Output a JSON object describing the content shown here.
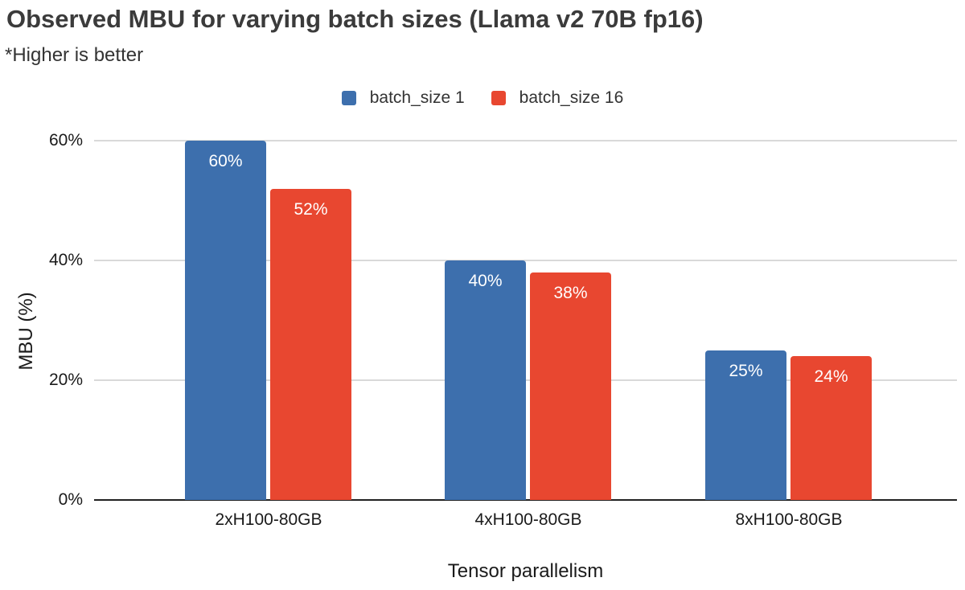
{
  "chart_data": {
    "type": "bar",
    "title": "Observed MBU for varying batch sizes (Llama v2 70B fp16)",
    "subtitle": "*Higher is better",
    "xlabel": "Tensor parallelism",
    "ylabel": "MBU (%)",
    "categories": [
      "2xH100-80GB",
      "4xH100-80GB",
      "8xH100-80GB"
    ],
    "series": [
      {
        "name": "batch_size 1",
        "color": "#3d6fad",
        "values": [
          60,
          40,
          25
        ],
        "value_labels": [
          "60%",
          "40%",
          "25%"
        ]
      },
      {
        "name": "batch_size 16",
        "color": "#e84730",
        "values": [
          52,
          38,
          24
        ],
        "value_labels": [
          "52%",
          "38%",
          "24%"
        ]
      }
    ],
    "ylim": [
      0,
      60
    ],
    "yticks": [
      {
        "value": 0,
        "label": "0%"
      },
      {
        "value": 20,
        "label": "20%"
      },
      {
        "value": 40,
        "label": "40%"
      },
      {
        "value": 60,
        "label": "60%"
      }
    ],
    "grid": true,
    "legend_position": "top-center",
    "bar_label_color": "#ffffff",
    "grid_color": "#d9d9d9",
    "baseline_color": "#212121"
  }
}
